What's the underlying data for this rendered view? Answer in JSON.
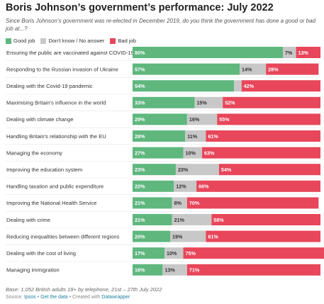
{
  "title": "Boris Johnson’s government’s performance: July 2022",
  "subtitle": "Since Boris Johnson’s government was re-elected in December 2019, do you think the government has done a good or bad job at...?",
  "legend": [
    {
      "label": "Good job",
      "color": "#5fb77e"
    },
    {
      "label": "Don't know / No answer",
      "color": "#c8c8c8"
    },
    {
      "label": "Bad job",
      "color": "#e8465a"
    }
  ],
  "chart_data": {
    "type": "bar",
    "orientation": "horizontal",
    "stacked": true,
    "categories": [
      "Ensuring the public are vaccinated against COVID-19",
      "Responding to the Russian invasion of Ukraine",
      "Dealing with the Covid-19 pandemic",
      "Maximising Britain's influence in the world",
      "Dealing with climate change",
      "Handling Britain's relationship with the EU",
      "Managing the economy",
      "Improving the education system",
      "Handling taxation and public expenditure",
      "Improving the National Health Service",
      "Dealing with crime",
      "Reducing inequalities between different regions",
      "Dealing with the cost of living",
      "Managing immigration"
    ],
    "series": [
      {
        "name": "Good job",
        "values": [
          80,
          57,
          54,
          33,
          29,
          28,
          27,
          23,
          22,
          21,
          21,
          20,
          17,
          16
        ]
      },
      {
        "name": "Don't know / No answer",
        "values": [
          7,
          14,
          4,
          15,
          16,
          11,
          10,
          23,
          12,
          8,
          21,
          19,
          10,
          13
        ]
      },
      {
        "name": "Bad job",
        "values": [
          13,
          28,
          42,
          52,
          55,
          61,
          63,
          54,
          66,
          70,
          58,
          61,
          75,
          71
        ]
      }
    ],
    "data_labels": [
      [
        "80%",
        "7%",
        "13%"
      ],
      [
        "57%",
        "14%",
        "28%"
      ],
      [
        "54%",
        "",
        "42%"
      ],
      [
        "33%",
        "15%",
        "52%"
      ],
      [
        "29%",
        "16%",
        "55%"
      ],
      [
        "28%",
        "11%",
        "61%"
      ],
      [
        "27%",
        "10%",
        "63%"
      ],
      [
        "23%",
        "23%",
        "54%"
      ],
      [
        "22%",
        "12%",
        "66%"
      ],
      [
        "21%",
        "8%",
        "70%"
      ],
      [
        "21%",
        "21%",
        "58%"
      ],
      [
        "20%",
        "19%",
        "61%"
      ],
      [
        "17%",
        "10%",
        "75%"
      ],
      [
        "16%",
        "13%",
        "71%"
      ]
    ],
    "xlim": [
      0,
      100
    ]
  },
  "footer": {
    "note": "Base: 1,052 British adults 18+ by telephone, 21st – 27th July 2022",
    "source_prefix": "Source: ",
    "source": "Ipsos",
    "sep1": " • ",
    "get_data": "Get the data",
    "sep2": " • Created with ",
    "tool": "Datawrapper"
  }
}
